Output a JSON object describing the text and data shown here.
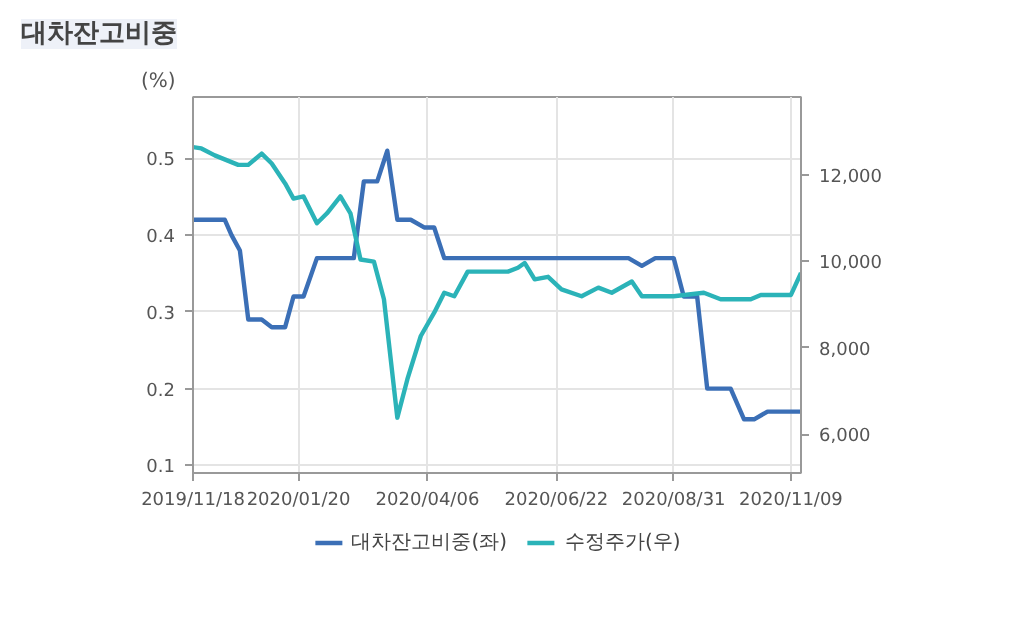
{
  "chart_data": {
    "type": "line",
    "title": "대차잔고비중",
    "ylabel": "(%)",
    "xlim": [
      "2019-11-18",
      "2020-11-15"
    ],
    "xticks": [
      {
        "value": "2019-11-18",
        "label": "2019/11/18"
      },
      {
        "value": "2020-01-20",
        "label": "2020/01/20"
      },
      {
        "value": "2020-04-06",
        "label": "2020/04/06"
      },
      {
        "value": "2020-06-22",
        "label": "2020/06/22"
      },
      {
        "value": "2020-08-31",
        "label": "2020/08/31"
      },
      {
        "value": "2020-11-09",
        "label": "2020/11/09"
      }
    ],
    "ylim": [
      0.09,
      0.58
    ],
    "yticks": [
      0.1,
      0.2,
      0.3,
      0.4,
      0.5
    ],
    "y2lim": [
      5100,
      13800
    ],
    "y2ticks": [
      {
        "value": 6000,
        "label": "6,000"
      },
      {
        "value": 8000,
        "label": "8,000"
      },
      {
        "value": 10000,
        "label": "10,000"
      },
      {
        "value": 12000,
        "label": "12,000"
      }
    ],
    "grid": true,
    "legend": "bottom",
    "line_style": "solid",
    "series": [
      {
        "name": "대차잔고비중(좌)",
        "color": "#3b6fb6",
        "x": [
          "2019-11-18",
          "2019-12-07",
          "2019-12-11",
          "2019-12-16",
          "2019-12-21",
          "2019-12-29",
          "2020-01-04",
          "2020-01-12",
          "2020-01-17",
          "2020-01-23",
          "2020-01-31",
          "2020-02-22",
          "2020-02-28",
          "2020-03-07",
          "2020-03-13",
          "2020-03-19",
          "2020-03-27",
          "2020-04-04",
          "2020-04-10",
          "2020-04-16",
          "2020-08-04",
          "2020-08-12",
          "2020-08-20",
          "2020-08-31",
          "2020-09-06",
          "2020-09-14",
          "2020-09-20",
          "2020-10-04",
          "2020-10-12",
          "2020-10-18",
          "2020-10-26",
          "2020-11-15"
        ],
        "values": [
          0.42,
          0.42,
          0.4,
          0.38,
          0.29,
          0.29,
          0.28,
          0.28,
          0.32,
          0.32,
          0.37,
          0.37,
          0.47,
          0.47,
          0.51,
          0.42,
          0.42,
          0.41,
          0.41,
          0.37,
          0.37,
          0.36,
          0.37,
          0.37,
          0.32,
          0.32,
          0.2,
          0.2,
          0.16,
          0.16,
          0.17,
          0.17
        ]
      },
      {
        "name": "수정주가(우)",
        "color": "#2bb3b8",
        "axis": "y2",
        "x": [
          "2019-11-18",
          "2019-11-23",
          "2019-12-01",
          "2019-12-15",
          "2019-12-21",
          "2019-12-29",
          "2020-01-04",
          "2020-01-12",
          "2020-01-17",
          "2020-01-23",
          "2020-01-31",
          "2020-02-06",
          "2020-02-14",
          "2020-02-20",
          "2020-02-26",
          "2020-03-05",
          "2020-03-11",
          "2020-03-19",
          "2020-03-25",
          "2020-04-02",
          "2020-04-10",
          "2020-04-16",
          "2020-04-22",
          "2020-04-30",
          "2020-05-24",
          "2020-05-30",
          "2020-06-03",
          "2020-06-09",
          "2020-06-17",
          "2020-06-25",
          "2020-07-07",
          "2020-07-17",
          "2020-07-25",
          "2020-08-06",
          "2020-08-12",
          "2020-08-31",
          "2020-09-18",
          "2020-09-28",
          "2020-10-16",
          "2020-10-22",
          "2020-11-09",
          "2020-11-15"
        ],
        "values": [
          12640,
          12610,
          12450,
          12230,
          12230,
          12490,
          12260,
          11800,
          11450,
          11500,
          10880,
          11110,
          11500,
          11110,
          10040,
          9990,
          9120,
          6380,
          7270,
          8270,
          8810,
          9270,
          9190,
          9760,
          9760,
          9850,
          9960,
          9580,
          9640,
          9350,
          9190,
          9390,
          9270,
          9530,
          9190,
          9190,
          9270,
          9120,
          9120,
          9220,
          9220,
          9730
        ]
      }
    ]
  }
}
